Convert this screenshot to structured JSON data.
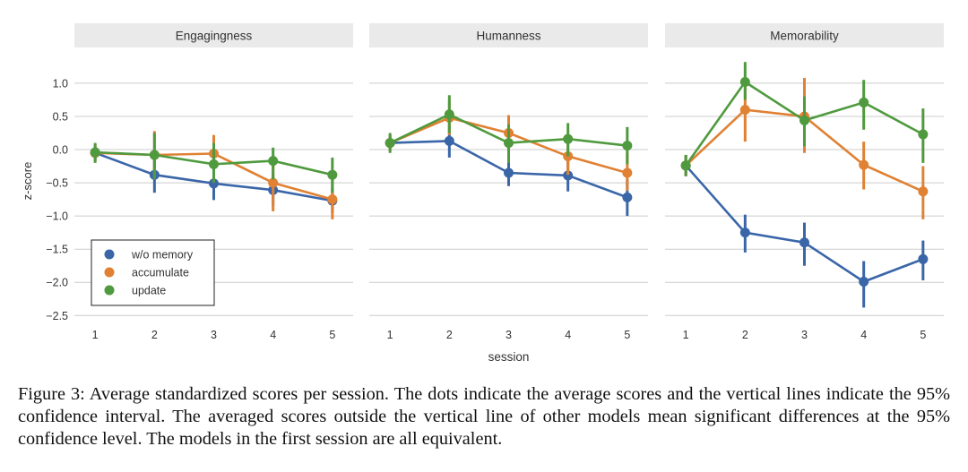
{
  "chart_data": {
    "type": "line",
    "panels": [
      {
        "title": "Engagingness",
        "series": [
          {
            "name": "w/o memory",
            "values": [
              -0.05,
              -0.38,
              -0.51,
              -0.61,
              -0.77
            ],
            "ci_low": [
              -0.15,
              -0.65,
              -0.76,
              -0.85,
              -0.95
            ],
            "ci_high": [
              0.05,
              -0.12,
              -0.28,
              -0.38,
              -0.58
            ]
          },
          {
            "name": "accumulate",
            "values": [
              -0.05,
              -0.08,
              -0.06,
              -0.5,
              -0.75
            ],
            "ci_low": [
              -0.18,
              -0.42,
              -0.35,
              -0.93,
              -1.05
            ],
            "ci_high": [
              0.08,
              0.28,
              0.22,
              -0.1,
              -0.45
            ]
          },
          {
            "name": "update",
            "values": [
              -0.04,
              -0.08,
              -0.22,
              -0.17,
              -0.38
            ],
            "ci_low": [
              -0.2,
              -0.45,
              -0.5,
              -0.45,
              -0.65
            ],
            "ci_high": [
              0.1,
              0.25,
              0.1,
              0.03,
              -0.12
            ]
          }
        ]
      },
      {
        "title": "Humanness",
        "series": [
          {
            "name": "w/o memory",
            "values": [
              0.1,
              0.13,
              -0.35,
              -0.39,
              -0.72
            ],
            "ci_low": [
              0.0,
              -0.12,
              -0.55,
              -0.63,
              -1.0
            ],
            "ci_high": [
              0.22,
              0.38,
              -0.12,
              -0.15,
              -0.45
            ]
          },
          {
            "name": "accumulate",
            "values": [
              0.1,
              0.48,
              0.25,
              -0.1,
              -0.35
            ],
            "ci_low": [
              -0.02,
              0.22,
              -0.02,
              -0.38,
              -0.62
            ],
            "ci_high": [
              0.22,
              0.75,
              0.52,
              0.18,
              -0.05
            ]
          },
          {
            "name": "update",
            "values": [
              0.1,
              0.53,
              0.1,
              0.16,
              0.06
            ],
            "ci_low": [
              -0.05,
              0.25,
              -0.2,
              -0.1,
              -0.22
            ],
            "ci_high": [
              0.25,
              0.82,
              0.38,
              0.4,
              0.34
            ]
          }
        ]
      },
      {
        "title": "Memorability",
        "series": [
          {
            "name": "w/o memory",
            "values": [
              -0.24,
              -1.25,
              -1.4,
              -1.99,
              -1.65
            ],
            "ci_low": [
              -0.4,
              -1.55,
              -1.75,
              -2.38,
              -1.97
            ],
            "ci_high": [
              -0.08,
              -0.98,
              -1.1,
              -1.68,
              -1.37
            ]
          },
          {
            "name": "accumulate",
            "values": [
              -0.24,
              0.6,
              0.5,
              -0.23,
              -0.63
            ],
            "ci_low": [
              -0.4,
              0.12,
              -0.05,
              -0.6,
              -1.05
            ],
            "ci_high": [
              -0.08,
              1.05,
              1.08,
              0.12,
              -0.25
            ]
          },
          {
            "name": "update",
            "values": [
              -0.24,
              1.02,
              0.44,
              0.71,
              0.23
            ],
            "ci_low": [
              -0.4,
              0.75,
              0.05,
              0.3,
              -0.2
            ],
            "ci_high": [
              -0.08,
              1.32,
              0.8,
              1.05,
              0.62
            ]
          }
        ]
      }
    ],
    "x": [
      1,
      2,
      3,
      4,
      5
    ],
    "xticks": [
      "1",
      "2",
      "3",
      "4",
      "5"
    ],
    "xlabel": "session",
    "ylabel": "z-score",
    "ylim": [
      -2.55,
      1.35
    ],
    "yticks": [
      1.0,
      0.5,
      0.0,
      -0.5,
      -1.0,
      -1.5,
      -2.0,
      -2.5
    ],
    "ytick_labels": [
      "1.0",
      "0.5",
      "0.0",
      "−0.5",
      "−1.0",
      "−1.5",
      "−2.0",
      "−2.5"
    ],
    "colors": {
      "w/o memory": "#3a66a8",
      "accumulate": "#e08133",
      "update": "#4f9a3e"
    },
    "legend": {
      "placement": "lower-left",
      "panel": 0,
      "entries": [
        "w/o memory",
        "accumulate",
        "update"
      ]
    },
    "grid": true
  },
  "caption": "Figure 3: Average standardized scores per session. The dots indicate the average scores and the vertical lines indicate the 95% confidence interval. The averaged scores outside the vertical line of other models mean significant differences at the 95% confidence level. The models in the first session are all equivalent."
}
